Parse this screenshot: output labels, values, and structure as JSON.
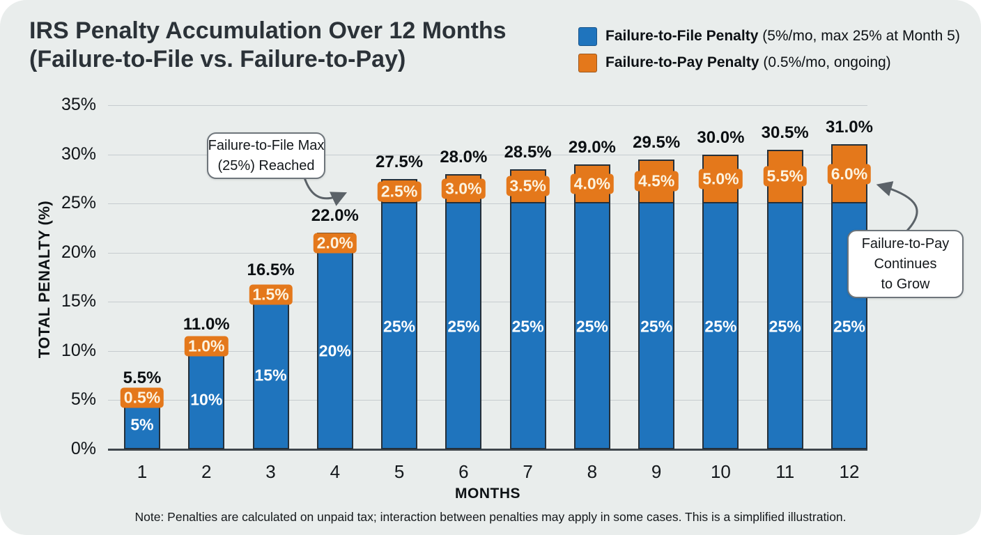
{
  "title": {
    "line1": "IRS Penalty Accumulation Over 12 Months",
    "line2": "(Failure-to-File vs. Failure-to-Pay)"
  },
  "legend": {
    "items": [
      {
        "name": "Failure-to-File Penalty",
        "detail": " (5%/mo, max 25% at Month 5)",
        "color": "#1F74BD"
      },
      {
        "name": "Failure-to-Pay Penalty",
        "detail": " (0.5%/mo, ongoing)",
        "color": "#E4781B"
      }
    ]
  },
  "chart_data": {
    "type": "bar",
    "stacked": true,
    "title": "IRS Penalty Accumulation Over 12 Months (Failure-to-File vs. Failure-to-Pay)",
    "xlabel": "MONTHS",
    "ylabel": "TOTAL PENALTY (%)",
    "ylim": [
      0,
      35
    ],
    "grid": true,
    "legend_position": "top-right",
    "categories": [
      "1",
      "2",
      "3",
      "4",
      "5",
      "6",
      "7",
      "8",
      "9",
      "10",
      "11",
      "12"
    ],
    "ytick_values": [
      0,
      5,
      10,
      15,
      20,
      25,
      30,
      35
    ],
    "ytick_labels": [
      "0%",
      "5%",
      "10%",
      "15%",
      "20%",
      "25%",
      "30%",
      "35%"
    ],
    "series": [
      {
        "name": "Failure-to-File Penalty",
        "color": "#1F74BD",
        "values": [
          5,
          10,
          15,
          20,
          25,
          25,
          25,
          25,
          25,
          25,
          25,
          25
        ],
        "value_labels": [
          "5%",
          "10%",
          "15%",
          "20%",
          "25%",
          "25%",
          "25%",
          "25%",
          "25%",
          "25%",
          "25%",
          "25%"
        ]
      },
      {
        "name": "Failure-to-Pay Penalty",
        "color": "#E4781B",
        "values": [
          0.5,
          1.0,
          1.5,
          2.0,
          2.5,
          3.0,
          3.5,
          4.0,
          4.5,
          5.0,
          5.5,
          6.0
        ],
        "value_labels": [
          "0.5%",
          "1.0%",
          "1.5%",
          "2.0%",
          "2.5%",
          "3.0%",
          "3.5%",
          "4.0%",
          "4.5%",
          "5.0%",
          "5.5%",
          "6.0%"
        ]
      }
    ],
    "totals": [
      5.5,
      11.0,
      16.5,
      22.0,
      27.5,
      28.0,
      28.5,
      29.0,
      29.5,
      30.0,
      30.5,
      31.0
    ],
    "total_labels": [
      "5.5%",
      "11.0%",
      "16.5%",
      "22.0%",
      "27.5%",
      "28.0%",
      "28.5%",
      "29.0%",
      "29.5%",
      "30.0%",
      "30.5%",
      "31.0%"
    ]
  },
  "annotations": [
    {
      "lines": [
        "Failure-to-File Max",
        "(25%) Reached"
      ],
      "target": "month-5-pay-segment"
    },
    {
      "lines": [
        "Failure-to-Pay",
        "Continues",
        "to Grow"
      ],
      "target": "month-12-pay-segment"
    }
  ],
  "note": "Note: Penalties are calculated on unpaid tax; interaction between penalties may apply in some cases. This is a simplified illustration."
}
